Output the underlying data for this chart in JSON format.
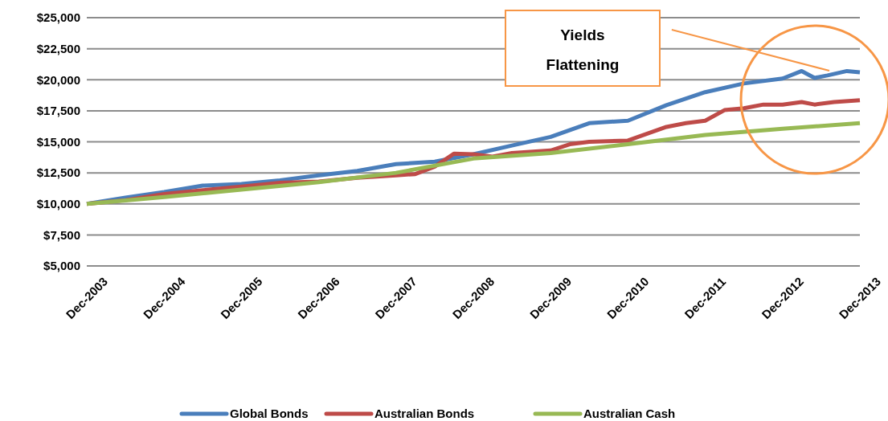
{
  "chart_data": {
    "type": "line",
    "annotations": [
      "Yields Flattening"
    ],
    "xlim": [
      "2003-12",
      "2013-12"
    ],
    "xticks": [
      {
        "value": "2003-12",
        "label": "Dec-2003"
      },
      {
        "value": "2004-12",
        "label": "Dec-2004"
      },
      {
        "value": "2005-12",
        "label": "Dec-2005"
      },
      {
        "value": "2006-12",
        "label": "Dec-2006"
      },
      {
        "value": "2007-12",
        "label": "Dec-2007"
      },
      {
        "value": "2008-12",
        "label": "Dec-2008"
      },
      {
        "value": "2009-12",
        "label": "Dec-2009"
      },
      {
        "value": "2010-12",
        "label": "Dec-2010"
      },
      {
        "value": "2011-12",
        "label": "Dec-2011"
      },
      {
        "value": "2012-12",
        "label": "Dec-2012"
      },
      {
        "value": "2013-12",
        "label": "Dec-2013"
      }
    ],
    "ylim": [
      5000,
      25000
    ],
    "yticks": [
      {
        "value": 5000,
        "label": "$5,000"
      },
      {
        "value": 7500,
        "label": "$7,500"
      },
      {
        "value": 10000,
        "label": "$10,000"
      },
      {
        "value": 12500,
        "label": "$12,500"
      },
      {
        "value": 15000,
        "label": "$15,000"
      },
      {
        "value": 17500,
        "label": "$17,500"
      },
      {
        "value": 20000,
        "label": "$20,000"
      },
      {
        "value": 22500,
        "label": "$22,500"
      },
      {
        "value": 25000,
        "label": "$25,000"
      }
    ],
    "grid": "y",
    "legend": "bottom",
    "marker": "none",
    "line_style": "solid",
    "series": [
      {
        "name": "Global Bonds",
        "color": "#4a7ebb",
        "x": [
          "2003-12",
          "2004-06",
          "2004-12",
          "2005-06",
          "2005-12",
          "2006-06",
          "2006-12",
          "2007-06",
          "2007-12",
          "2008-06",
          "2008-12",
          "2009-06",
          "2009-12",
          "2010-06",
          "2010-12",
          "2011-06",
          "2011-12",
          "2012-06",
          "2012-12",
          "2013-03",
          "2013-05",
          "2013-07",
          "2013-10",
          "2013-12"
        ],
        "values": [
          10000,
          10500,
          10950,
          11470,
          11600,
          11900,
          12300,
          12650,
          13200,
          13400,
          14000,
          14700,
          15400,
          16500,
          16700,
          17950,
          19000,
          19700,
          20100,
          20700,
          20150,
          20350,
          20700,
          20600
        ]
      },
      {
        "name": "Australian Bonds",
        "color": "#be4b48",
        "x": [
          "2003-12",
          "2004-06",
          "2004-12",
          "2005-06",
          "2005-12",
          "2006-06",
          "2006-12",
          "2007-06",
          "2007-12",
          "2008-03",
          "2008-06",
          "2008-09",
          "2008-12",
          "2009-03",
          "2009-06",
          "2009-12",
          "2010-03",
          "2010-06",
          "2010-12",
          "2011-06",
          "2011-09",
          "2011-12",
          "2012-03",
          "2012-06",
          "2012-09",
          "2012-12",
          "2013-03",
          "2013-05",
          "2013-08",
          "2013-12"
        ],
        "values": [
          10000,
          10300,
          10800,
          11100,
          11400,
          11700,
          11800,
          12100,
          12300,
          12400,
          13000,
          14050,
          14000,
          13800,
          14100,
          14300,
          14800,
          15000,
          15100,
          16200,
          16500,
          16700,
          17550,
          17700,
          18000,
          18000,
          18200,
          18000,
          18200,
          18350
        ]
      },
      {
        "name": "Australian Cash",
        "color": "#98b954",
        "x": [
          "2003-12",
          "2004-12",
          "2005-12",
          "2006-12",
          "2007-12",
          "2008-12",
          "2009-12",
          "2010-12",
          "2011-12",
          "2012-12",
          "2013-12"
        ],
        "values": [
          10000,
          10550,
          11150,
          11750,
          12500,
          13650,
          14100,
          14800,
          15550,
          16050,
          16500
        ]
      }
    ]
  }
}
